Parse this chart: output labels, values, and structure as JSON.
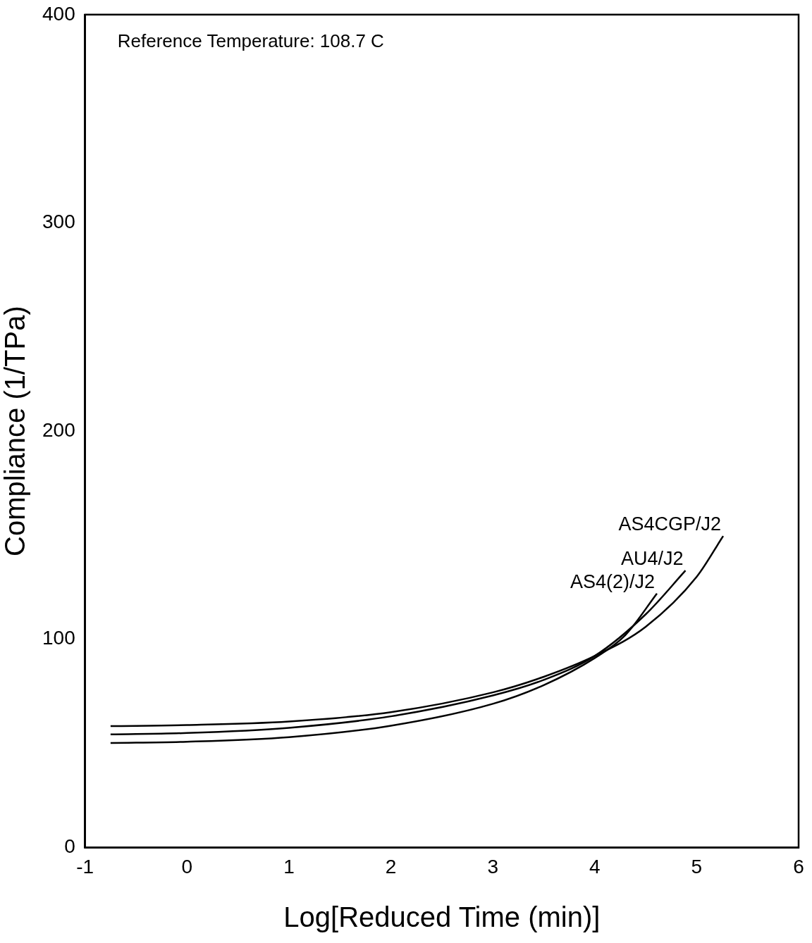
{
  "chart_data": {
    "type": "line",
    "xlabel": "Log[Reduced Time (min)]",
    "ylabel": "Compliance (1/TPa)",
    "annotations": [
      "Reference Temperature: 108.7 C"
    ],
    "xlim": [
      -1,
      6
    ],
    "xticks": [
      -1,
      0,
      1,
      2,
      3,
      4,
      5,
      6
    ],
    "ylim": [
      0,
      400
    ],
    "yticks": [
      0,
      100,
      200,
      300,
      400
    ],
    "grid": false,
    "legend": false,
    "marker": "none",
    "line_style": "solid",
    "series": [
      {
        "name": "AS4CGP/J2",
        "color": "#000000",
        "x": [
          -0.75,
          0,
          1,
          2,
          3,
          3.5,
          4,
          4.5,
          5,
          5.26
        ],
        "values": [
          58.3,
          58.8,
          60.5,
          65,
          74.5,
          82,
          92,
          106,
          130,
          149.6
        ]
      },
      {
        "name": "AU4/J2",
        "color": "#000000",
        "x": [
          -0.75,
          0,
          1,
          2,
          3,
          3.5,
          4,
          4.5,
          4.89
        ],
        "values": [
          54.3,
          55,
          57.5,
          63,
          73,
          80.5,
          92,
          112,
          133
        ]
      },
      {
        "name": "AS4(2)/J2",
        "color": "#000000",
        "x": [
          -0.75,
          0,
          1,
          2,
          3,
          3.5,
          4,
          4.3,
          4.61
        ],
        "values": [
          50.2,
          50.8,
          53,
          58.5,
          69,
          78,
          91,
          102,
          122
        ]
      }
    ]
  }
}
